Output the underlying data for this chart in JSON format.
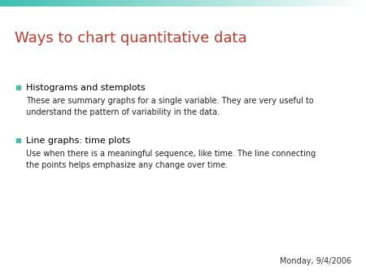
{
  "title": "Ways to chart quantitative data",
  "title_color": "#C0392B",
  "title_fontsize": 13,
  "background_color": "#FFFFFF",
  "top_bar_color_left": "#3DBFB0",
  "top_bar_color_right": "#FFFFFF",
  "bullet_color": "#4DBDAF",
  "bullet1_header": "Histograms and stemplots",
  "bullet1_body": "These are summary graphs for a single variable. They are very useful to\nunderstand the pattern of variability in the data.",
  "bullet2_header": "Line graphs: time plots",
  "bullet2_body": "Use when there is a meaningful sequence, like time. The line connecting\nthe points helps emphasize any change over time.",
  "header_fontsize": 8,
  "body_fontsize": 7,
  "header_color": "#000000",
  "body_color": "#222222",
  "date_text": "Monday, 9/4/2006",
  "date_fontsize": 7,
  "date_color": "#333333"
}
